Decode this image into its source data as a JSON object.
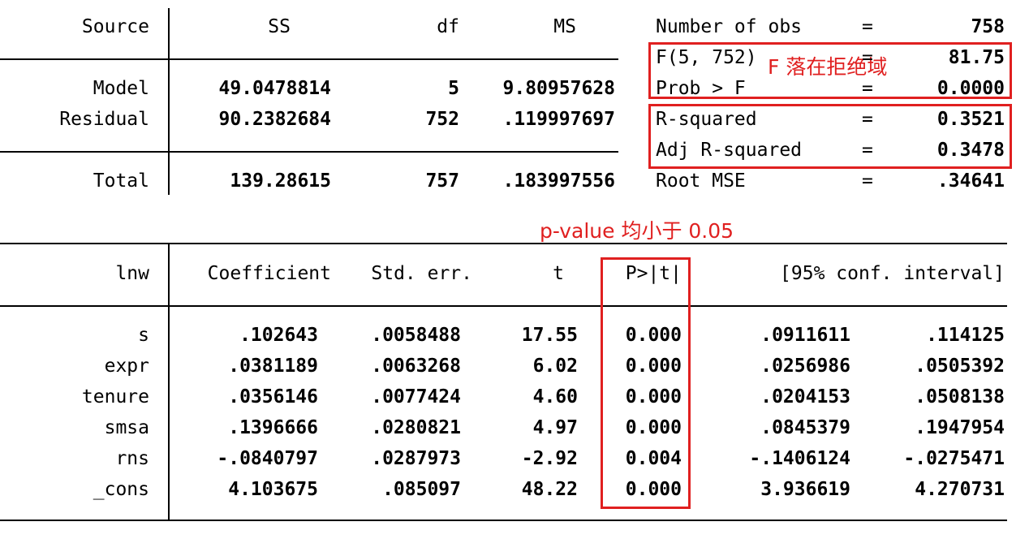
{
  "anova": {
    "headers": {
      "source": "Source",
      "ss": "SS",
      "df": "df",
      "ms": "MS"
    },
    "rows": [
      {
        "source": "Model",
        "ss": "49.0478814",
        "df": "5",
        "ms": "9.80957628"
      },
      {
        "source": "Residual",
        "ss": "90.2382684",
        "df": "752",
        "ms": ".119997697"
      },
      {
        "source": "Total",
        "ss": "139.28615",
        "df": "757",
        "ms": ".183997556"
      }
    ]
  },
  "stats": [
    {
      "label": "Number of obs",
      "eq": "=",
      "value": "758"
    },
    {
      "label": "F(5, 752)",
      "eq": "=",
      "value": "81.75"
    },
    {
      "label": "Prob > F",
      "eq": "=",
      "value": "0.0000"
    },
    {
      "label": "R-squared",
      "eq": "=",
      "value": "0.3521"
    },
    {
      "label": "Adj R-squared",
      "eq": "=",
      "value": "0.3478"
    },
    {
      "label": "Root MSE",
      "eq": "=",
      "value": ".34641"
    }
  ],
  "coef": {
    "headers": {
      "var": "lnw",
      "coef": "Coefficient",
      "se": "Std. err.",
      "t": "t",
      "p": "P>|t|",
      "ci": "[95% conf. interval]"
    },
    "rows": [
      {
        "var": "s",
        "coef": ".102643",
        "se": ".0058488",
        "t": "17.55",
        "p": "0.000",
        "lo": ".0911611",
        "hi": ".114125"
      },
      {
        "var": "expr",
        "coef": ".0381189",
        "se": ".0063268",
        "t": "6.02",
        "p": "0.000",
        "lo": ".0256986",
        "hi": ".0505392"
      },
      {
        "var": "tenure",
        "coef": ".0356146",
        "se": ".0077424",
        "t": "4.60",
        "p": "0.000",
        "lo": ".0204153",
        "hi": ".0508138"
      },
      {
        "var": "smsa",
        "coef": ".1396666",
        "se": ".0280821",
        "t": "4.97",
        "p": "0.000",
        "lo": ".0845379",
        "hi": ".1947954"
      },
      {
        "var": "rns",
        "coef": "-.0840797",
        "se": ".0287973",
        "t": "-2.92",
        "p": "0.004",
        "lo": "-.1406124",
        "hi": "-.0275471"
      },
      {
        "var": "_cons",
        "coef": "4.103675",
        "se": ".085097",
        "t": "48.22",
        "p": "0.000",
        "lo": "3.936619",
        "hi": "4.270731"
      }
    ]
  },
  "annotations": {
    "f_note": "F 落在拒绝域",
    "p_note": "p-value 均小于 0.05",
    "color": "#e02020"
  }
}
